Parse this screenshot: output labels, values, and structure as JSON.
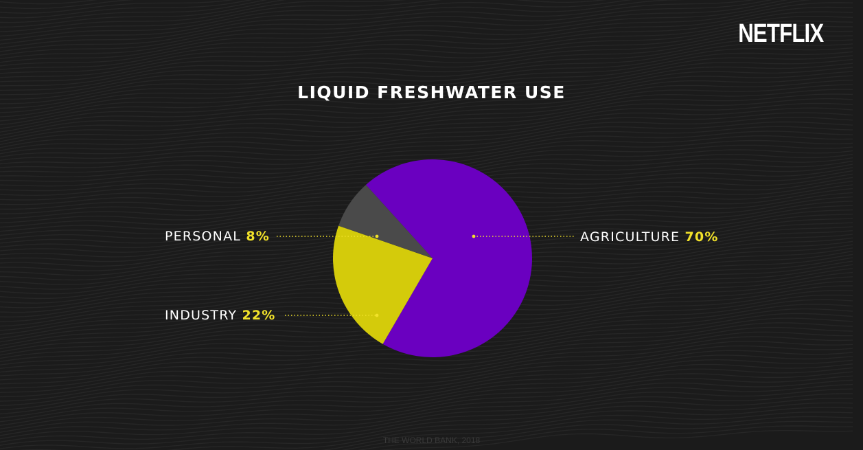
{
  "brand": {
    "logo_text": "NETFLIX"
  },
  "source_note": "THE WORLD BANK, 2018",
  "colors": {
    "background": "#1b1b1b",
    "agriculture": "#6a00c0",
    "industry": "#d4cb0b",
    "personal": "#4a4a4a",
    "percent_text": "#f2e22a",
    "leader_dots": "#f2e22a"
  },
  "chart_data": {
    "type": "pie",
    "title": "LIQUID FRESHWATER USE",
    "slices": [
      {
        "label": "AGRICULTURE",
        "value": 70,
        "value_label": "70%"
      },
      {
        "label": "INDUSTRY",
        "value": 22,
        "value_label": "22%"
      },
      {
        "label": "PERSONAL",
        "value": 8,
        "value_label": "8%"
      }
    ]
  }
}
